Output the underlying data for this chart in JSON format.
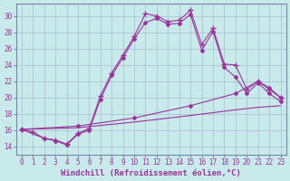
{
  "xlabel": "Windchill (Refroidissement éolien,°C)",
  "bg_color": "#c8eaea",
  "line_color": "#993399",
  "grid_color": "#aabbcc",
  "x_ticks": [
    0,
    1,
    2,
    3,
    4,
    5,
    6,
    7,
    8,
    9,
    10,
    11,
    12,
    13,
    14,
    15,
    16,
    17,
    18,
    19,
    20,
    21,
    22,
    23
  ],
  "y_ticks": [
    14,
    16,
    18,
    20,
    22,
    24,
    26,
    28,
    30
  ],
  "ylim": [
    13.0,
    31.5
  ],
  "xlim": [
    -0.5,
    23.5
  ],
  "series1_x": [
    0,
    1,
    2,
    3,
    4,
    5,
    6,
    7,
    8,
    9,
    10,
    11,
    12,
    13,
    14,
    15,
    16,
    17,
    18,
    19,
    20,
    21,
    22,
    23
  ],
  "series1_y": [
    16.1,
    15.8,
    15.0,
    14.8,
    14.3,
    15.6,
    16.2,
    20.2,
    23.0,
    25.2,
    27.5,
    30.3,
    30.0,
    29.3,
    29.5,
    30.7,
    26.5,
    28.5,
    24.1,
    24.0,
    21.0,
    22.0,
    21.0,
    20.0
  ],
  "series2_x": [
    0,
    2,
    3,
    4,
    5,
    6,
    7,
    8,
    9,
    10,
    11,
    12,
    13,
    14,
    15,
    16,
    17,
    18,
    19,
    20,
    21,
    22,
    23
  ],
  "series2_y": [
    16.1,
    15.0,
    14.7,
    14.2,
    15.5,
    16.0,
    19.8,
    22.7,
    24.9,
    27.2,
    29.2,
    29.7,
    29.0,
    29.1,
    30.2,
    25.8,
    28.1,
    23.7,
    22.5,
    20.5,
    21.8,
    20.5,
    19.5
  ],
  "series3_x": [
    0,
    5,
    10,
    15,
    19,
    21,
    22,
    23
  ],
  "series3_y": [
    16.1,
    16.5,
    17.5,
    19.0,
    20.5,
    22.0,
    21.2,
    20.0
  ],
  "series4_x": [
    0,
    5,
    10,
    15,
    19,
    21,
    22,
    23
  ],
  "series4_y": [
    16.1,
    16.3,
    17.0,
    17.8,
    18.5,
    18.8,
    18.9,
    19.0
  ],
  "tick_fontsize": 5.5,
  "label_fontsize": 6.5
}
